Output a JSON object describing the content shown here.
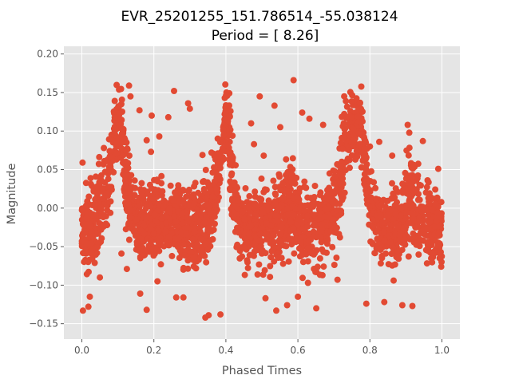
{
  "chart_data": {
    "type": "scatter",
    "title": "EVR_25201255_151.786514_-55.038124",
    "subtitle": "Period = [ 8.26]",
    "xlabel": "Phased Times",
    "ylabel": "Magnitude",
    "xlim": [
      -0.05,
      1.05
    ],
    "ylim": [
      -0.17,
      0.21
    ],
    "x_ticks": [
      0.0,
      0.2,
      0.4,
      0.6,
      0.8,
      1.0
    ],
    "x_tick_labels": [
      "0.0",
      "0.2",
      "0.4",
      "0.6",
      "0.8",
      "1.0"
    ],
    "y_ticks": [
      -0.15,
      -0.1,
      -0.05,
      0.0,
      0.05,
      0.1,
      0.15,
      0.2
    ],
    "y_tick_labels": [
      "−0.15",
      "−0.10",
      "−0.05",
      "0.00",
      "0.05",
      "0.10",
      "0.15",
      "0.20"
    ],
    "grid": true,
    "background": "#e5e5e5",
    "marker_color": "#e24a33",
    "phase_envelope": [
      {
        "x": 0.0,
        "lo": -0.09,
        "hi": 0.03
      },
      {
        "x": 0.02,
        "lo": -0.1,
        "hi": 0.05
      },
      {
        "x": 0.04,
        "lo": -0.1,
        "hi": 0.07
      },
      {
        "x": 0.06,
        "lo": -0.09,
        "hi": 0.09
      },
      {
        "x": 0.08,
        "lo": -0.05,
        "hi": 0.13
      },
      {
        "x": 0.09,
        "lo": 0.0,
        "hi": 0.17
      },
      {
        "x": 0.1,
        "lo": 0.05,
        "hi": 0.18
      },
      {
        "x": 0.11,
        "lo": 0.02,
        "hi": 0.17
      },
      {
        "x": 0.12,
        "lo": -0.04,
        "hi": 0.13
      },
      {
        "x": 0.14,
        "lo": -0.08,
        "hi": 0.06
      },
      {
        "x": 0.17,
        "lo": -0.1,
        "hi": 0.05
      },
      {
        "x": 0.2,
        "lo": -0.1,
        "hi": 0.07
      },
      {
        "x": 0.22,
        "lo": -0.09,
        "hi": 0.07
      },
      {
        "x": 0.24,
        "lo": -0.08,
        "hi": 0.04
      },
      {
        "x": 0.27,
        "lo": -0.1,
        "hi": 0.05
      },
      {
        "x": 0.3,
        "lo": -0.1,
        "hi": 0.05
      },
      {
        "x": 0.33,
        "lo": -0.1,
        "hi": 0.05
      },
      {
        "x": 0.36,
        "lo": -0.08,
        "hi": 0.07
      },
      {
        "x": 0.38,
        "lo": -0.03,
        "hi": 0.13
      },
      {
        "x": 0.39,
        "lo": 0.02,
        "hi": 0.17
      },
      {
        "x": 0.4,
        "lo": 0.05,
        "hi": 0.18
      },
      {
        "x": 0.41,
        "lo": 0.0,
        "hi": 0.17
      },
      {
        "x": 0.42,
        "lo": -0.05,
        "hi": 0.1
      },
      {
        "x": 0.45,
        "lo": -0.1,
        "hi": 0.04
      },
      {
        "x": 0.5,
        "lo": -0.1,
        "hi": 0.05
      },
      {
        "x": 0.55,
        "lo": -0.1,
        "hi": 0.06
      },
      {
        "x": 0.58,
        "lo": -0.07,
        "hi": 0.09
      },
      {
        "x": 0.61,
        "lo": -0.1,
        "hi": 0.05
      },
      {
        "x": 0.65,
        "lo": -0.1,
        "hi": 0.05
      },
      {
        "x": 0.69,
        "lo": -0.09,
        "hi": 0.06
      },
      {
        "x": 0.72,
        "lo": -0.06,
        "hi": 0.12
      },
      {
        "x": 0.73,
        "lo": 0.0,
        "hi": 0.17
      },
      {
        "x": 0.75,
        "lo": 0.03,
        "hi": 0.18
      },
      {
        "x": 0.77,
        "lo": 0.05,
        "hi": 0.18
      },
      {
        "x": 0.78,
        "lo": 0.02,
        "hi": 0.17
      },
      {
        "x": 0.79,
        "lo": -0.03,
        "hi": 0.12
      },
      {
        "x": 0.81,
        "lo": -0.08,
        "hi": 0.05
      },
      {
        "x": 0.85,
        "lo": -0.1,
        "hi": 0.04
      },
      {
        "x": 0.89,
        "lo": -0.09,
        "hi": 0.06
      },
      {
        "x": 0.91,
        "lo": -0.07,
        "hi": 0.11
      },
      {
        "x": 0.93,
        "lo": -0.08,
        "hi": 0.08
      },
      {
        "x": 0.96,
        "lo": -0.09,
        "hi": 0.05
      },
      {
        "x": 1.0,
        "lo": -0.09,
        "hi": 0.03
      }
    ],
    "outliers": [
      {
        "x": 0.002,
        "y": 0.059
      },
      {
        "x": 0.003,
        "y": -0.133
      },
      {
        "x": 0.018,
        "y": -0.128
      },
      {
        "x": 0.022,
        "y": -0.115
      },
      {
        "x": 0.05,
        "y": -0.09
      },
      {
        "x": 0.061,
        "y": 0.078
      },
      {
        "x": 0.11,
        "y": -0.059
      },
      {
        "x": 0.125,
        "y": -0.079
      },
      {
        "x": 0.131,
        "y": 0.159
      },
      {
        "x": 0.135,
        "y": 0.145
      },
      {
        "x": 0.162,
        "y": -0.111
      },
      {
        "x": 0.16,
        "y": 0.127
      },
      {
        "x": 0.18,
        "y": -0.132
      },
      {
        "x": 0.18,
        "y": 0.088
      },
      {
        "x": 0.192,
        "y": 0.073
      },
      {
        "x": 0.194,
        "y": 0.12
      },
      {
        "x": 0.21,
        "y": -0.095
      },
      {
        "x": 0.215,
        "y": 0.093
      },
      {
        "x": 0.24,
        "y": 0.118
      },
      {
        "x": 0.256,
        "y": 0.152
      },
      {
        "x": 0.262,
        "y": -0.116
      },
      {
        "x": 0.282,
        "y": -0.116
      },
      {
        "x": 0.295,
        "y": 0.136
      },
      {
        "x": 0.3,
        "y": 0.129
      },
      {
        "x": 0.335,
        "y": 0.069
      },
      {
        "x": 0.343,
        "y": -0.142
      },
      {
        "x": 0.352,
        "y": -0.139
      },
      {
        "x": 0.36,
        "y": 0.072
      },
      {
        "x": 0.385,
        "y": -0.138
      },
      {
        "x": 0.47,
        "y": 0.11
      },
      {
        "x": 0.478,
        "y": 0.083
      },
      {
        "x": 0.494,
        "y": 0.145
      },
      {
        "x": 0.505,
        "y": 0.068
      },
      {
        "x": 0.51,
        "y": -0.117
      },
      {
        "x": 0.535,
        "y": 0.133
      },
      {
        "x": 0.54,
        "y": -0.133
      },
      {
        "x": 0.551,
        "y": 0.105
      },
      {
        "x": 0.57,
        "y": -0.126
      },
      {
        "x": 0.588,
        "y": 0.166
      },
      {
        "x": 0.6,
        "y": -0.115
      },
      {
        "x": 0.612,
        "y": 0.124
      },
      {
        "x": 0.628,
        "y": -0.097
      },
      {
        "x": 0.632,
        "y": 0.116
      },
      {
        "x": 0.651,
        "y": -0.13
      },
      {
        "x": 0.67,
        "y": 0.108
      },
      {
        "x": 0.688,
        "y": 0.045
      },
      {
        "x": 0.71,
        "y": -0.093
      },
      {
        "x": 0.724,
        "y": 0.077
      },
      {
        "x": 0.79,
        "y": -0.124
      },
      {
        "x": 0.8,
        "y": 0.08
      },
      {
        "x": 0.826,
        "y": 0.086
      },
      {
        "x": 0.84,
        "y": -0.122
      },
      {
        "x": 0.862,
        "y": 0.068
      },
      {
        "x": 0.866,
        "y": -0.094
      },
      {
        "x": 0.89,
        "y": -0.126
      },
      {
        "x": 0.905,
        "y": 0.108
      },
      {
        "x": 0.918,
        "y": -0.127
      },
      {
        "x": 0.947,
        "y": 0.087
      },
      {
        "x": 0.99,
        "y": 0.051
      },
      {
        "x": 0.998,
        "y": -0.076
      }
    ]
  }
}
